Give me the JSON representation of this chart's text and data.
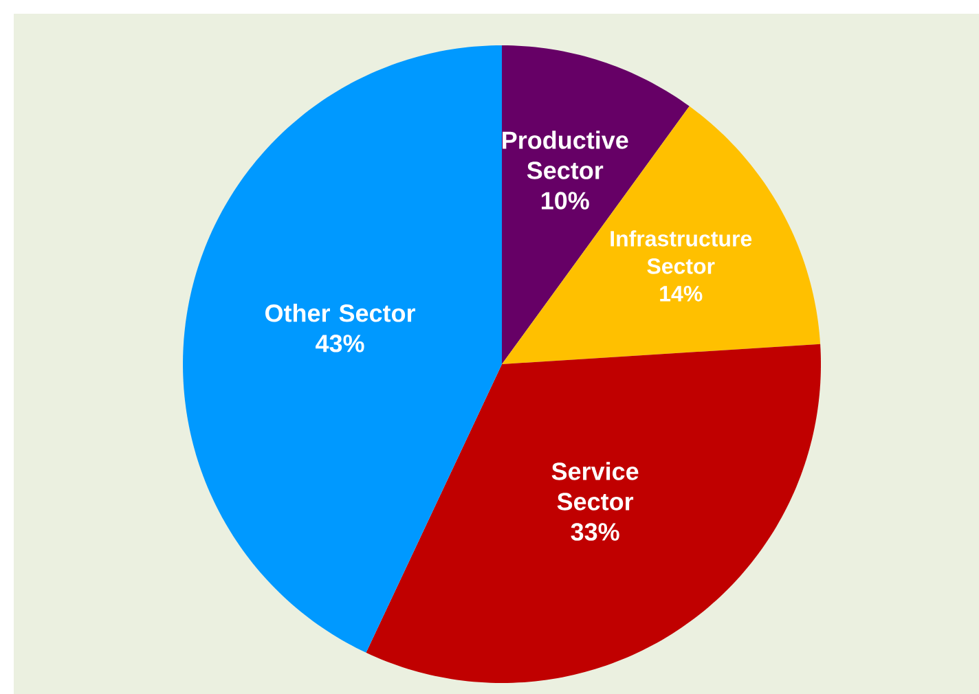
{
  "chart_data": {
    "type": "pie",
    "categories": [
      "Productive Sector",
      "Infrastructure Sector",
      "Service Sector",
      "Other Sector"
    ],
    "values": [
      10,
      14,
      33,
      43
    ],
    "colors": [
      "#660066",
      "#ffc000",
      "#c00000",
      "#0099ff"
    ],
    "value_labels": [
      "10%",
      "14%",
      "33%",
      "43%"
    ]
  }
}
